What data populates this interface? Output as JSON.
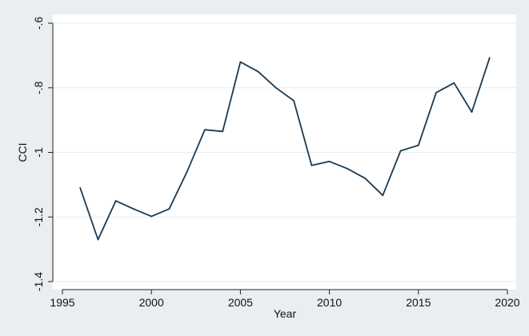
{
  "chart_data": {
    "type": "line",
    "title": "",
    "xlabel": "Year",
    "ylabel": "CCI",
    "xlim": [
      1995,
      2020
    ],
    "ylim": [
      -1.4,
      -0.6
    ],
    "x_ticks": [
      1995,
      2000,
      2005,
      2010,
      2015,
      2020
    ],
    "x_tick_labels": [
      "1995",
      "2000",
      "2005",
      "2010",
      "2015",
      "2020"
    ],
    "y_ticks": [
      -1.4,
      -1.2,
      -1.0,
      -0.8,
      -0.6
    ],
    "y_tick_labels": [
      "-1.4",
      "-1.2",
      "-1",
      "-.8",
      "-.6"
    ],
    "grid": "horizontal",
    "legend": "none",
    "colors": {
      "background": "#e8eef2",
      "plot_area": "#ffffff",
      "line": "#1a3a52",
      "grid": "#e6ecef",
      "axis": "#222222"
    },
    "series": [
      {
        "x": [
          1996,
          1997,
          1998,
          1999,
          2000,
          2001,
          2002,
          2003,
          2004,
          2005,
          2006,
          2007,
          2008,
          2009,
          2010,
          2011,
          2012,
          2013,
          2014,
          2015,
          2016,
          2017,
          2018,
          2019
        ],
        "values": [
          -1.11,
          -1.27,
          -1.15,
          -1.175,
          -1.198,
          -1.175,
          -1.06,
          -0.93,
          -0.935,
          -0.72,
          -0.75,
          -0.8,
          -0.84,
          -1.04,
          -1.028,
          -1.05,
          -1.08,
          -1.133,
          -0.995,
          -0.978,
          -0.815,
          -0.785,
          -0.875,
          -0.707
        ]
      }
    ]
  }
}
